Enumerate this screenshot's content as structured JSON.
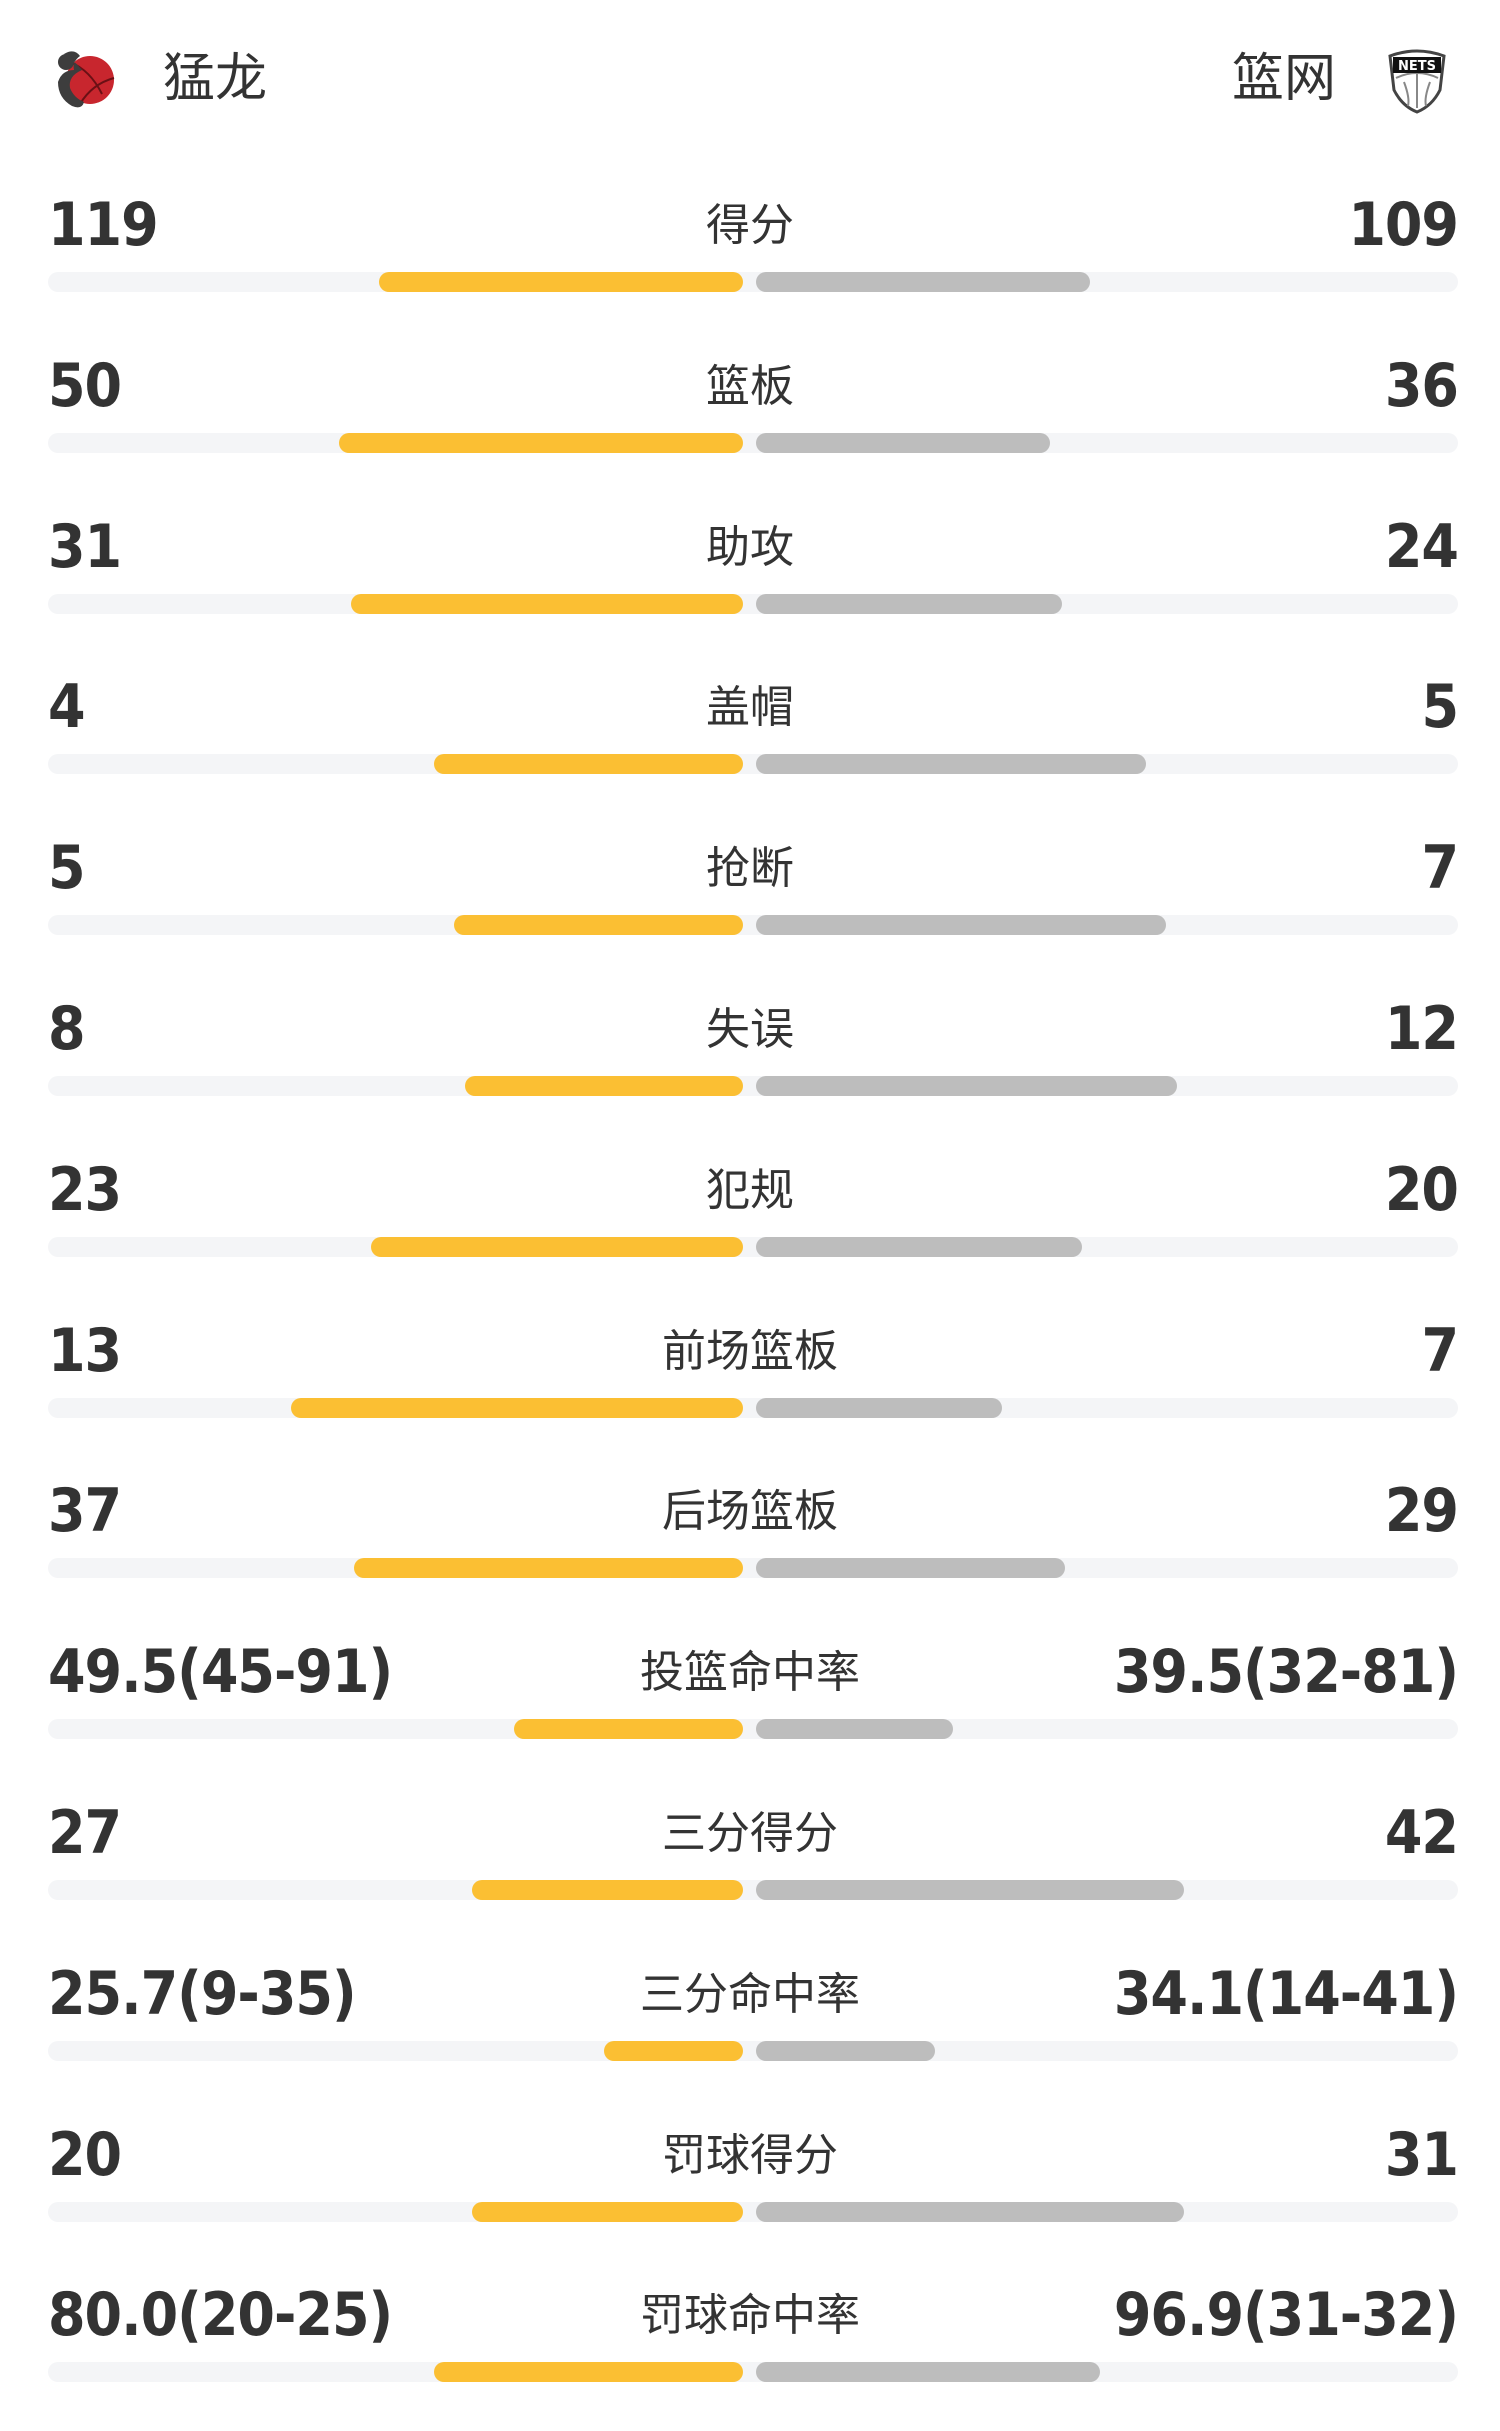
{
  "header": {
    "home": {
      "name": "猛龙",
      "logo": "raptors-logo"
    },
    "away": {
      "name": "篮网",
      "logo": "nets-logo",
      "logo_text": "NETS"
    }
  },
  "colors": {
    "home_bar": "#FBBF33",
    "away_bar": "#BDBDBD",
    "track": "#F4F5F7"
  },
  "stats": [
    {
      "label": "得分",
      "home": "119",
      "away": "109",
      "home_fill": 0.524,
      "away_fill": 0.476
    },
    {
      "label": "篮板",
      "home": "50",
      "away": "36",
      "home_fill": 0.581,
      "away_fill": 0.419
    },
    {
      "label": "助攻",
      "home": "31",
      "away": "24",
      "home_fill": 0.564,
      "away_fill": 0.436
    },
    {
      "label": "盖帽",
      "home": "4",
      "away": "5",
      "home_fill": 0.445,
      "away_fill": 0.555
    },
    {
      "label": "抢断",
      "home": "5",
      "away": "7",
      "home_fill": 0.416,
      "away_fill": 0.584
    },
    {
      "label": "失误",
      "home": "8",
      "away": "12",
      "home_fill": 0.4,
      "away_fill": 0.6
    },
    {
      "label": "犯规",
      "home": "23",
      "away": "20",
      "home_fill": 0.535,
      "away_fill": 0.465
    },
    {
      "label": "前场篮板",
      "home": "13",
      "away": "7",
      "home_fill": 0.65,
      "away_fill": 0.35
    },
    {
      "label": "后场篮板",
      "home": "37",
      "away": "29",
      "home_fill": 0.56,
      "away_fill": 0.44
    },
    {
      "label": "投篮命中率",
      "home": "49.5(45-91)",
      "away": "39.5(32-81)",
      "home_fill": 0.33,
      "away_fill": 0.28
    },
    {
      "label": "三分得分",
      "home": "27",
      "away": "42",
      "home_fill": 0.39,
      "away_fill": 0.61
    },
    {
      "label": "三分命中率",
      "home": "25.7(9-35)",
      "away": "34.1(14-41)",
      "home_fill": 0.2,
      "away_fill": 0.255
    },
    {
      "label": "罚球得分",
      "home": "20",
      "away": "31",
      "home_fill": 0.39,
      "away_fill": 0.61
    },
    {
      "label": "罚球命中率",
      "home": "80.0(20-25)",
      "away": "96.9(31-32)",
      "home_fill": 0.445,
      "away_fill": 0.49
    }
  ]
}
